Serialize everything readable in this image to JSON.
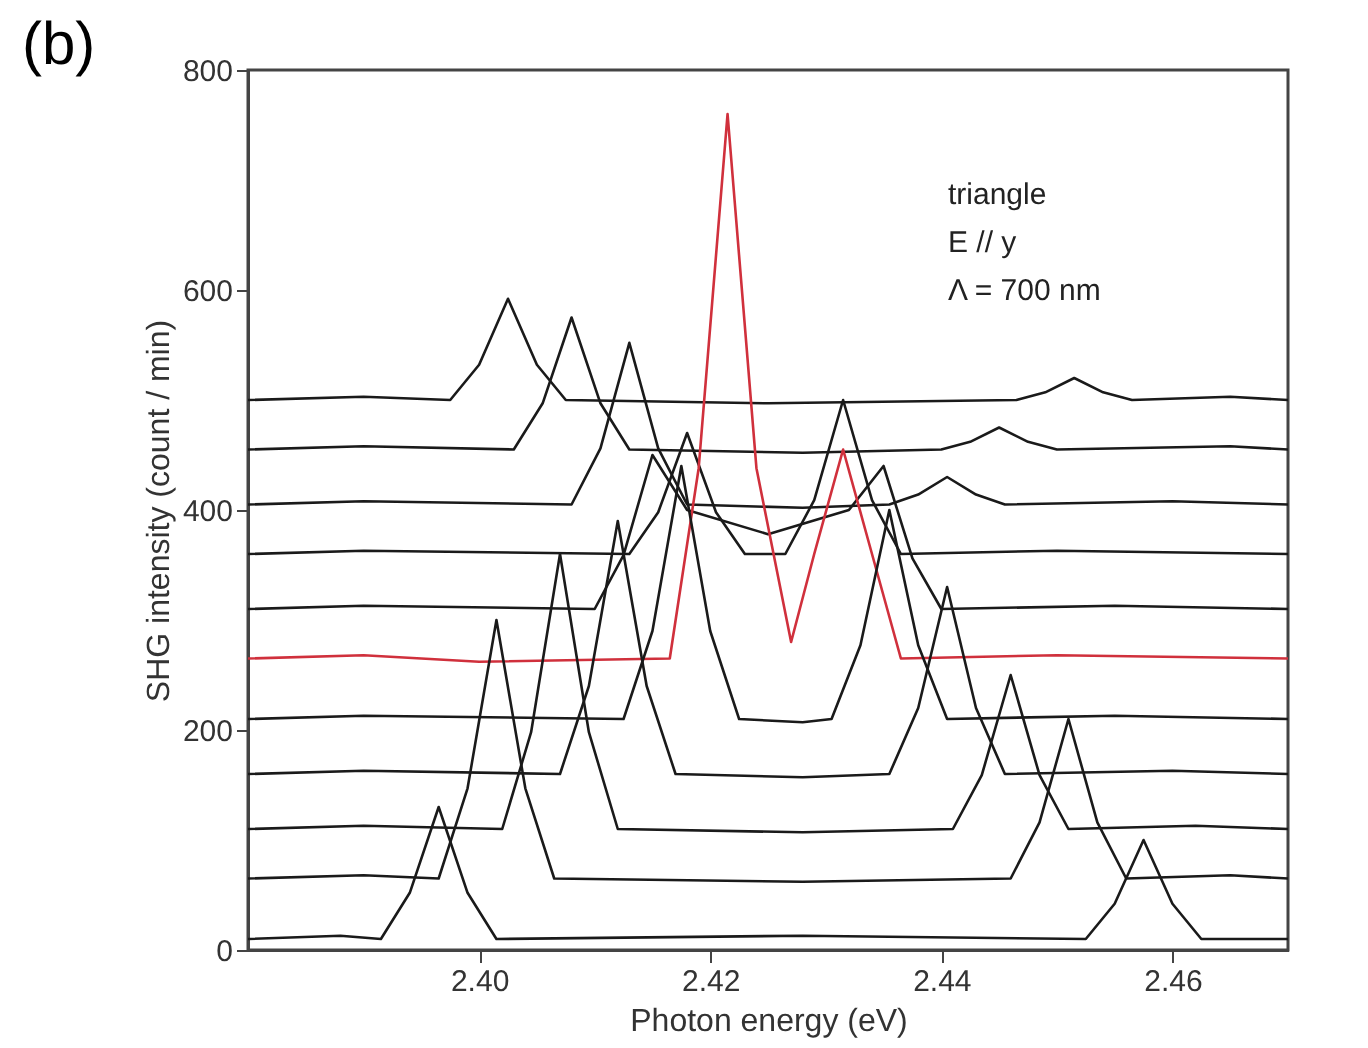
{
  "chart_data": {
    "type": "line",
    "title": "(b)",
    "xlabel": "Photon energy (eV)",
    "ylabel": "SHG intensity (count / min)",
    "xlim": [
      2.38,
      2.47
    ],
    "xticks": [
      {
        "value": 2.4,
        "label": "2.40"
      },
      {
        "value": 2.42,
        "label": "2.42"
      },
      {
        "value": 2.44,
        "label": "2.44"
      },
      {
        "value": 2.46,
        "label": "2.46"
      }
    ],
    "ylim": [
      0,
      800
    ],
    "yticks": [
      0,
      200,
      400,
      600,
      800
    ],
    "grid": false,
    "marker": "none",
    "line_style": "solid",
    "annotations": [
      "triangle",
      "E // y",
      "Λ = 700 nm"
    ],
    "series": [
      {
        "color": "#1a1a1a",
        "x": [
          2.38,
          2.39,
          2.3975,
          2.4,
          2.4025,
          2.405,
          2.4075,
          2.425,
          2.4465,
          2.449,
          2.4515,
          2.454,
          2.4565,
          2.465,
          2.47
        ],
        "values": [
          500,
          503,
          500,
          532,
          592,
          532,
          500,
          497,
          500,
          507,
          520,
          507,
          500,
          503,
          500
        ]
      },
      {
        "color": "#1a1a1a",
        "x": [
          2.38,
          2.39,
          2.403,
          2.4055,
          2.408,
          2.4105,
          2.413,
          2.428,
          2.44,
          2.4425,
          2.445,
          2.4475,
          2.45,
          2.465,
          2.47
        ],
        "values": [
          455,
          458,
          455,
          497,
          575,
          497,
          455,
          452,
          455,
          462,
          475,
          462,
          455,
          458,
          455
        ]
      },
      {
        "color": "#1a1a1a",
        "x": [
          2.38,
          2.39,
          2.408,
          2.4105,
          2.413,
          2.4155,
          2.418,
          2.428,
          2.4355,
          2.438,
          2.4405,
          2.443,
          2.4455,
          2.46,
          2.47
        ],
        "values": [
          405,
          408,
          405,
          456,
          552,
          456,
          405,
          402,
          405,
          414,
          430,
          414,
          405,
          408,
          405
        ]
      },
      {
        "color": "#1a1a1a",
        "x": [
          2.38,
          2.39,
          2.413,
          2.4155,
          2.418,
          2.4205,
          2.423,
          2.4265,
          2.429,
          2.4315,
          2.434,
          2.4365,
          2.45,
          2.47
        ],
        "values": [
          360,
          363,
          360,
          398,
          470,
          398,
          360,
          360,
          409,
          500,
          409,
          360,
          363,
          360
        ]
      },
      {
        "color": "#1a1a1a",
        "x": [
          2.38,
          2.39,
          2.41,
          2.4125,
          2.415,
          2.418,
          2.425,
          2.432,
          2.435,
          2.4375,
          2.44,
          2.455,
          2.47
        ],
        "values": [
          310,
          313,
          310,
          359,
          450,
          400,
          378,
          400,
          440,
          356,
          310,
          313,
          310
        ]
      },
      {
        "color": "#d0303c",
        "x": [
          2.38,
          2.39,
          2.4,
          2.4165,
          2.419,
          2.4215,
          2.424,
          2.427,
          2.429,
          2.4315,
          2.434,
          2.4365,
          2.45,
          2.47
        ],
        "values": [
          265,
          268,
          262,
          265,
          438,
          760,
          438,
          280,
          360,
          455,
          360,
          265,
          268,
          265
        ]
      },
      {
        "color": "#1a1a1a",
        "x": [
          2.38,
          2.39,
          2.4125,
          2.415,
          2.4175,
          2.42,
          2.4225,
          2.428,
          2.4305,
          2.433,
          2.4355,
          2.438,
          2.4405,
          2.455,
          2.47
        ],
        "values": [
          210,
          213,
          210,
          290,
          440,
          290,
          210,
          207,
          210,
          277,
          400,
          277,
          210,
          213,
          210
        ]
      },
      {
        "color": "#1a1a1a",
        "x": [
          2.38,
          2.39,
          2.407,
          2.4095,
          2.412,
          2.4145,
          2.417,
          2.428,
          2.4355,
          2.438,
          2.4405,
          2.443,
          2.4455,
          2.46,
          2.47
        ],
        "values": [
          160,
          163,
          160,
          240,
          390,
          240,
          160,
          157,
          160,
          220,
          330,
          220,
          160,
          163,
          160
        ]
      },
      {
        "color": "#1a1a1a",
        "x": [
          2.38,
          2.39,
          2.402,
          2.4045,
          2.407,
          2.4095,
          2.412,
          2.428,
          2.441,
          2.4435,
          2.446,
          2.4485,
          2.451,
          2.462,
          2.47
        ],
        "values": [
          110,
          113,
          110,
          198,
          360,
          198,
          110,
          107,
          110,
          159,
          250,
          159,
          110,
          113,
          110
        ]
      },
      {
        "color": "#1a1a1a",
        "x": [
          2.38,
          2.39,
          2.3965,
          2.399,
          2.4015,
          2.404,
          2.4065,
          2.428,
          2.446,
          2.4485,
          2.451,
          2.4535,
          2.456,
          2.465,
          2.47
        ],
        "values": [
          65,
          68,
          65,
          147,
          300,
          147,
          65,
          62,
          65,
          116,
          210,
          116,
          65,
          68,
          65
        ]
      },
      {
        "color": "#1a1a1a",
        "x": [
          2.38,
          2.388,
          2.3915,
          2.394,
          2.3965,
          2.399,
          2.4015,
          2.428,
          2.4525,
          2.455,
          2.4575,
          2.46,
          2.4625,
          2.47
        ],
        "values": [
          10,
          13,
          10,
          52,
          130,
          52,
          10,
          13,
          10,
          42,
          100,
          42,
          10,
          10
        ]
      }
    ]
  }
}
